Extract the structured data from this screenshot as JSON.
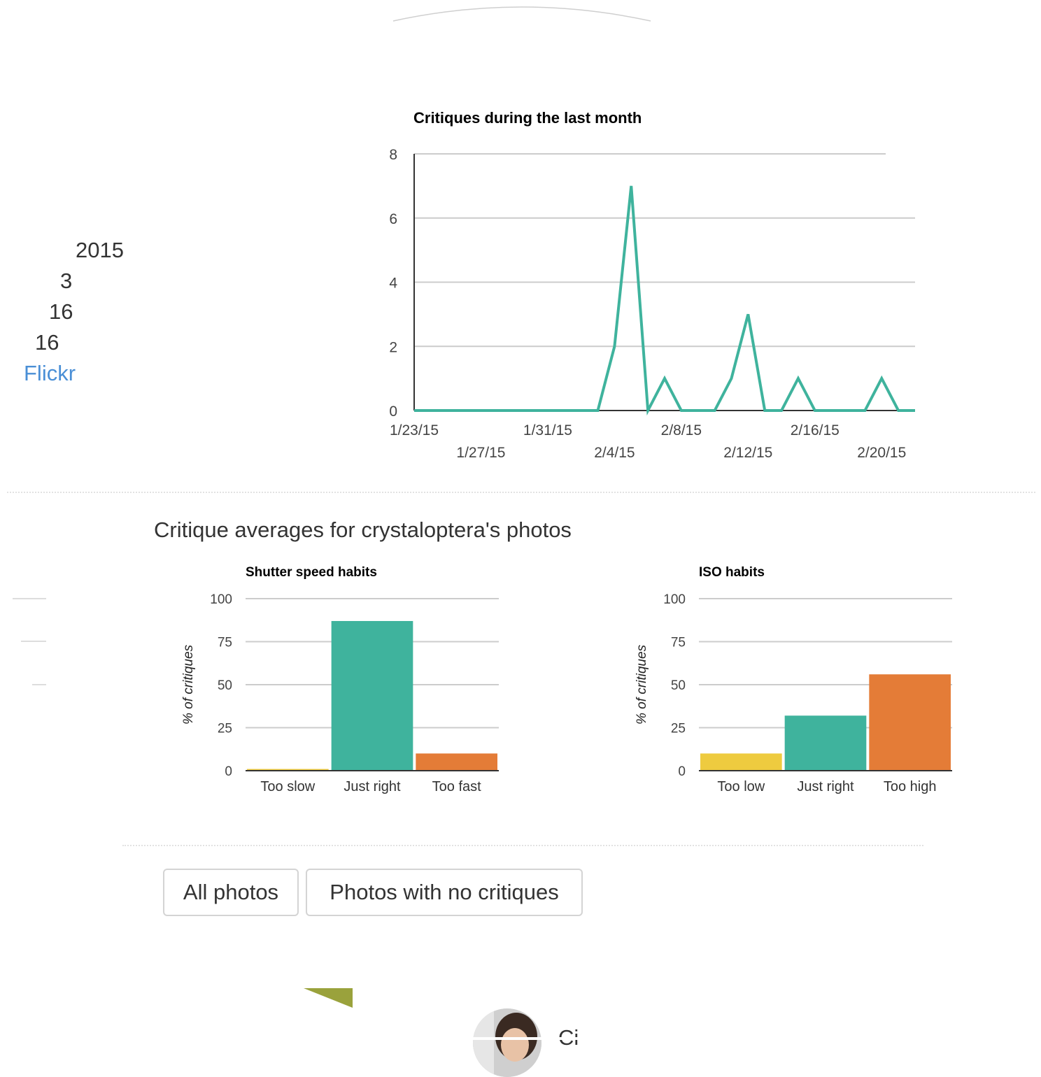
{
  "sidebar": {
    "stats": [
      "2015",
      "3",
      "16",
      "16"
    ],
    "link": "Flickr"
  },
  "section_title": "Critique averages for crystaloptera's photos",
  "filters": {
    "all_photos": "All photos",
    "no_critiques": "Photos with no critiques"
  },
  "colors": {
    "teal": "#3fb39d",
    "yellow": "#eecb3f",
    "orange": "#e47c37"
  },
  "chart_data": [
    {
      "type": "line",
      "title": "Critiques during the last month",
      "x": [
        "1/23/15",
        "1/24/15",
        "1/25/15",
        "1/26/15",
        "1/27/15",
        "1/28/15",
        "1/29/15",
        "1/30/15",
        "1/31/15",
        "2/1/15",
        "2/2/15",
        "2/3/15",
        "2/4/15",
        "2/5/15",
        "2/6/15",
        "2/7/15",
        "2/8/15",
        "2/9/15",
        "2/10/15",
        "2/11/15",
        "2/12/15",
        "2/13/15",
        "2/14/15",
        "2/15/15",
        "2/16/15",
        "2/17/15",
        "2/18/15",
        "2/19/15",
        "2/20/15",
        "2/21/15",
        "2/22/15"
      ],
      "values": [
        0,
        0,
        0,
        0,
        0,
        0,
        0,
        0,
        0,
        0,
        0,
        0,
        2,
        7,
        0,
        1,
        0,
        0,
        0,
        1,
        3,
        0,
        0,
        1,
        0,
        0,
        0,
        0,
        1,
        0,
        0
      ],
      "xtick_labels": [
        "1/23/15",
        "1/27/15",
        "1/31/15",
        "2/4/15",
        "2/8/15",
        "2/12/15",
        "2/16/15",
        "2/20/15"
      ],
      "yticks": [
        "0",
        "2",
        "4",
        "6",
        "8"
      ],
      "ylim": [
        0,
        8
      ],
      "color": "#3fb39d",
      "grid": true
    },
    {
      "type": "bar",
      "title": "Shutter speed habits",
      "ylabel": "% of critiques",
      "categories": [
        "Too slow",
        "Just right",
        "Too fast"
      ],
      "values": [
        1,
        87,
        10
      ],
      "colors": [
        "#eecb3f",
        "#3fb39d",
        "#e47c37"
      ],
      "yticks": [
        "0",
        "25",
        "50",
        "75",
        "100"
      ],
      "ylim": [
        0,
        100
      ],
      "grid": true
    },
    {
      "type": "bar",
      "title": "ISO habits",
      "ylabel": "% of critiques",
      "categories": [
        "Too low",
        "Just right",
        "Too high"
      ],
      "values": [
        10,
        32,
        56
      ],
      "colors": [
        "#eecb3f",
        "#3fb39d",
        "#e47c37"
      ],
      "yticks": [
        "0",
        "25",
        "50",
        "75",
        "100"
      ],
      "ylim": [
        0,
        100
      ],
      "grid": true
    }
  ]
}
